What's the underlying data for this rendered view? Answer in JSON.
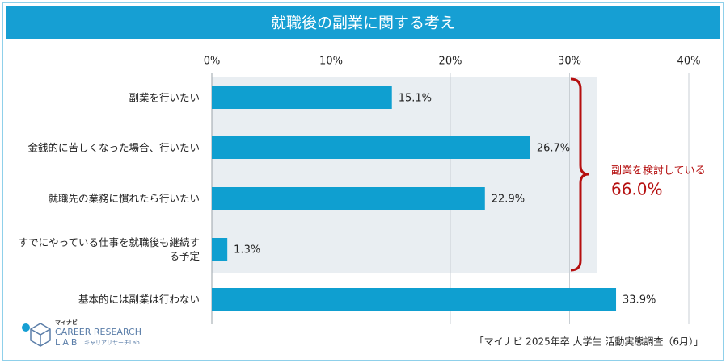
{
  "chart_data": {
    "type": "hbar",
    "title": "就職後の副業に関する考え",
    "categories": [
      "副業を行いたい",
      "金銭的に苦しくなった場合、行いたい",
      "就職先の業務に慣れたら行いたい",
      "すでにやっている仕事を就職後も継続する予定",
      "基本的には副業は行わない"
    ],
    "values": [
      15.1,
      26.7,
      22.9,
      1.3,
      33.9
    ],
    "value_labels": [
      "15.1%",
      "26.7%",
      "22.9%",
      "1.3%",
      "33.9%"
    ],
    "color": "#0f9fd0",
    "xlim": [
      0,
      40
    ],
    "xticks": [
      {
        "value": 0,
        "label": "0%"
      },
      {
        "value": 10,
        "label": "10%"
      },
      {
        "value": 20,
        "label": "20%"
      },
      {
        "value": 30,
        "label": "30%"
      },
      {
        "value": 40,
        "label": "40%"
      }
    ],
    "grid": true,
    "annotations": [
      "副業を検討している",
      "66.0%"
    ],
    "source": "「マイナビ 2025年卒 大学生 活動実態調査（6月）」",
    "logo": [
      "マイナビ",
      "CAREER RESEARCH",
      "LAB",
      "キャリアリサーチLab"
    ]
  }
}
